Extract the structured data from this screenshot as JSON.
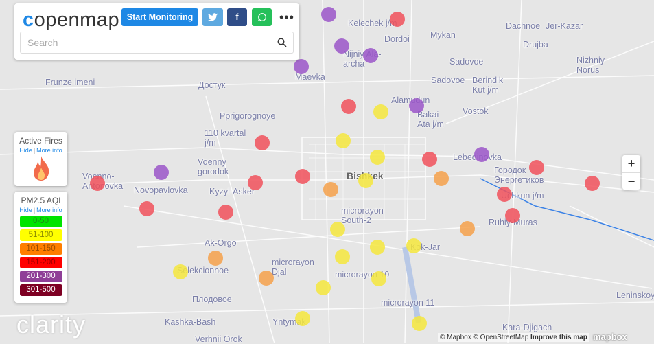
{
  "header": {
    "logo": "openmap",
    "start_monitoring": "Start Monitoring",
    "twitter_icon": "twitter-icon",
    "facebook_label": "f",
    "whatsapp_icon": "whatsapp-icon",
    "more_label": "•••",
    "search_placeholder": "Search"
  },
  "fires": {
    "title": "Active Fires",
    "hide": "Hide",
    "more_info": "More info",
    "icon": "fire-icon"
  },
  "aqi": {
    "title": "PM2.5 AQI",
    "hide": "Hide",
    "more_info": "More info",
    "levels": [
      {
        "label": "0-50",
        "bg": "#00e400",
        "fg": "#1a8a1a"
      },
      {
        "label": "51-100",
        "bg": "#ffff00",
        "fg": "#8a8a00"
      },
      {
        "label": "101-150",
        "bg": "#ff7e00",
        "fg": "#9a4a00"
      },
      {
        "label": "151-200",
        "bg": "#ff0000",
        "fg": "#a00000"
      },
      {
        "label": "201-300",
        "bg": "#8f3f97",
        "fg": "#ffffff"
      },
      {
        "label": "301-500",
        "bg": "#7e0023",
        "fg": "#ffffff"
      }
    ]
  },
  "map_labels": [
    "Kelechek j/m",
    "Mykan",
    "Dachnoe",
    "Jer-Kazar",
    "Dordoi",
    "Drujba",
    "Nijniy Ala-archa",
    "Sadovoe",
    "Nizhniy Norus",
    "Maevka",
    "Frunze imeni",
    "Достук",
    "Sadovoe",
    "Berindik Kut j/m",
    "Alamudun",
    "Pprigorognoye",
    "Bakai Ata j/m",
    "Vostok",
    "110 kvartal j/m",
    "Lebedinovka",
    "Voenny gorodok",
    "Bishkek",
    "Городок Энергетиков",
    "Voenno-Antonovka",
    "Novopavlovka",
    "Kyzyl-Asker",
    "Uchkun j/m",
    "microrayon South-2",
    "Ruhiy-Muras",
    "Ak-Orgo",
    "Kok-Jar",
    "Selekcionnoe",
    "microrayon Djal",
    "microrayon 10",
    "Плодовое",
    "microrayon 11",
    "Leninskoy",
    "Kashka-Bash",
    "Yntymak",
    "Kara-Djigach",
    "Verhnii Orok"
  ],
  "sensors": [
    "201-300",
    "151-200",
    "201-300",
    "201-300",
    "201-300",
    "201-300",
    "201-300",
    "201-300",
    "151-200",
    "151-200",
    "151-200",
    "151-200",
    "151-200",
    "151-200",
    "151-200",
    "151-200",
    "151-200",
    "151-200",
    "151-200",
    "151-200",
    "51-100",
    "51-100",
    "51-100",
    "51-100",
    "51-100",
    "51-100",
    "51-100",
    "51-100",
    "51-100",
    "51-100",
    "51-100",
    "51-100",
    "51-100",
    "101-150",
    "101-150",
    "101-150",
    "101-150",
    "101-150"
  ],
  "zoom": {
    "in": "+",
    "out": "−"
  },
  "attribution": {
    "mapbox": "© Mapbox",
    "osm": "© OpenStreetMap",
    "improve": "Improve this map",
    "brand": "mapbox"
  },
  "clarity_logo": "clarity"
}
